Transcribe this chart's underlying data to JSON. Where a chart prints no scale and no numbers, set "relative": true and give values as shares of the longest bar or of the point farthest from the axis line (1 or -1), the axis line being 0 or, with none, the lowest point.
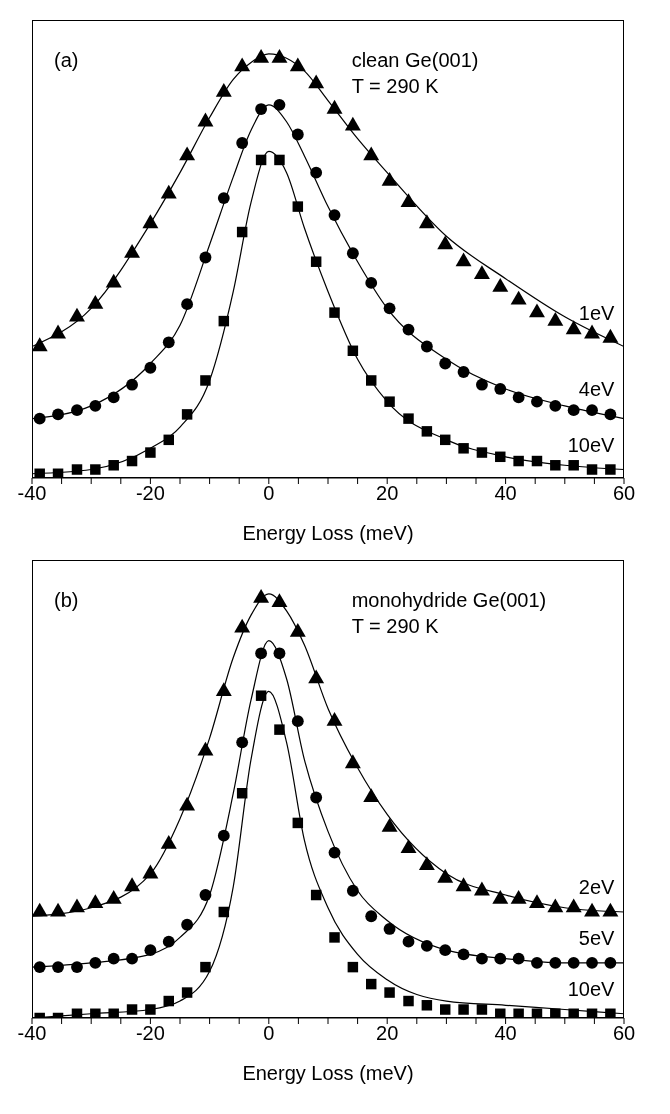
{
  "chart_data": [
    {
      "type": "scatter",
      "xlabel": "Energy Loss (meV)",
      "annotations": [
        "(a)",
        "clean Ge(001)",
        "T = 290 K"
      ],
      "relative": true,
      "xlim": [
        -40,
        60
      ],
      "xticks": [
        -40,
        {
          "value": -35,
          "label": null
        },
        {
          "value": -30,
          "label": null
        },
        {
          "value": -25,
          "label": null
        },
        -20,
        {
          "value": -15,
          "label": null
        },
        {
          "value": -10,
          "label": null
        },
        {
          "value": -5,
          "label": null
        },
        0,
        {
          "value": 5,
          "label": null
        },
        {
          "value": 10,
          "label": null
        },
        {
          "value": 15,
          "label": null
        },
        20,
        {
          "value": 25,
          "label": null
        },
        {
          "value": 30,
          "label": null
        },
        {
          "value": 35,
          "label": null
        },
        40,
        {
          "value": 45,
          "label": null
        },
        {
          "value": 50,
          "label": null
        },
        {
          "value": 55,
          "label": null
        },
        60
      ],
      "line_style": "solid",
      "x": [
        -38.7,
        -35.6,
        -32.4,
        -29.3,
        -26.2,
        -23.1,
        -20.0,
        -16.9,
        -13.8,
        -10.7,
        -7.6,
        -4.5,
        -1.3,
        1.8,
        4.9,
        8.0,
        11.1,
        14.2,
        17.3,
        20.4,
        23.6,
        26.7,
        29.8,
        32.9,
        36.0,
        39.1,
        42.2,
        45.3,
        48.4,
        51.5,
        54.6,
        57.7
      ],
      "series": [
        {
          "name": "1eV",
          "color": "#000000",
          "marker": "triangle",
          "values": [
            0.31,
            0.34,
            0.38,
            0.41,
            0.46,
            0.53,
            0.6,
            0.67,
            0.76,
            0.84,
            0.91,
            0.97,
            0.99,
            0.99,
            0.97,
            0.93,
            0.87,
            0.83,
            0.76,
            0.7,
            0.65,
            0.6,
            0.55,
            0.51,
            0.48,
            0.45,
            0.42,
            0.39,
            0.37,
            0.35,
            0.34,
            0.33
          ]
        },
        {
          "name": "4eV",
          "color": "#000000",
          "marker": "circle",
          "values": [
            0.14,
            0.15,
            0.16,
            0.17,
            0.19,
            0.22,
            0.26,
            0.32,
            0.41,
            0.52,
            0.66,
            0.79,
            0.87,
            0.88,
            0.81,
            0.72,
            0.62,
            0.53,
            0.46,
            0.4,
            0.35,
            0.31,
            0.27,
            0.25,
            0.22,
            0.21,
            0.19,
            0.18,
            0.17,
            0.16,
            0.16,
            0.15
          ]
        },
        {
          "name": "10eV",
          "color": "#000000",
          "marker": "square",
          "values": [
            0.01,
            0.01,
            0.02,
            0.02,
            0.03,
            0.04,
            0.06,
            0.09,
            0.15,
            0.23,
            0.37,
            0.58,
            0.75,
            0.75,
            0.64,
            0.51,
            0.39,
            0.3,
            0.23,
            0.18,
            0.14,
            0.11,
            0.09,
            0.07,
            0.06,
            0.05,
            0.04,
            0.04,
            0.03,
            0.03,
            0.02,
            0.02
          ]
        },
        {
          "type": "line",
          "color": "#000000",
          "x": [
            -40,
            -30,
            -20,
            -15,
            -10,
            -6,
            -3,
            0,
            3,
            6,
            10,
            15,
            20,
            30,
            40,
            50,
            60
          ],
          "values": [
            0.31,
            0.4,
            0.6,
            0.72,
            0.85,
            0.94,
            0.98,
            1.0,
            0.99,
            0.96,
            0.89,
            0.8,
            0.72,
            0.57,
            0.47,
            0.38,
            0.31
          ]
        },
        {
          "type": "line",
          "color": "#000000",
          "x": [
            -40,
            -30,
            -20,
            -15,
            -10,
            -6,
            -3,
            0,
            3,
            6,
            10,
            15,
            20,
            30,
            40,
            50,
            60
          ],
          "values": [
            0.14,
            0.17,
            0.27,
            0.36,
            0.55,
            0.71,
            0.82,
            0.88,
            0.84,
            0.76,
            0.64,
            0.51,
            0.4,
            0.28,
            0.21,
            0.17,
            0.14
          ]
        },
        {
          "type": "line",
          "color": "#000000",
          "x": [
            -40,
            -30,
            -20,
            -15,
            -10,
            -6,
            -3,
            0,
            3,
            6,
            10,
            15,
            20,
            30,
            40,
            50,
            60
          ],
          "values": [
            0.01,
            0.02,
            0.07,
            0.12,
            0.23,
            0.44,
            0.65,
            0.77,
            0.72,
            0.59,
            0.44,
            0.28,
            0.18,
            0.09,
            0.05,
            0.03,
            0.02
          ]
        }
      ]
    },
    {
      "type": "scatter",
      "xlabel": "Energy Loss (meV)",
      "annotations": [
        "(b)",
        "monohydride Ge(001)",
        "T = 290 K"
      ],
      "relative": true,
      "xlim": [
        -40,
        60
      ],
      "xticks": [
        -40,
        {
          "value": -35,
          "label": null
        },
        {
          "value": -30,
          "label": null
        },
        {
          "value": -25,
          "label": null
        },
        -20,
        {
          "value": -15,
          "label": null
        },
        {
          "value": -10,
          "label": null
        },
        {
          "value": -5,
          "label": null
        },
        0,
        {
          "value": 5,
          "label": null
        },
        {
          "value": 10,
          "label": null
        },
        {
          "value": 15,
          "label": null
        },
        20,
        {
          "value": 25,
          "label": null
        },
        {
          "value": 30,
          "label": null
        },
        {
          "value": 35,
          "label": null
        },
        40,
        {
          "value": 45,
          "label": null
        },
        {
          "value": 50,
          "label": null
        },
        {
          "value": 55,
          "label": null
        },
        60
      ],
      "line_style": "solid",
      "x": [
        -38.7,
        -35.6,
        -32.4,
        -29.3,
        -26.2,
        -23.1,
        -20.0,
        -16.9,
        -13.8,
        -10.7,
        -7.6,
        -4.5,
        -1.3,
        1.8,
        4.9,
        8.0,
        11.1,
        14.2,
        17.3,
        20.4,
        23.6,
        26.7,
        29.8,
        32.9,
        36.0,
        39.1,
        42.2,
        45.3,
        48.4,
        51.5,
        54.6,
        57.7
      ],
      "series": [
        {
          "name": "2eV",
          "color": "#000000",
          "marker": "triangle",
          "values": [
            0.25,
            0.25,
            0.26,
            0.27,
            0.28,
            0.31,
            0.34,
            0.41,
            0.5,
            0.63,
            0.77,
            0.92,
            0.99,
            0.98,
            0.91,
            0.8,
            0.7,
            0.6,
            0.52,
            0.45,
            0.4,
            0.36,
            0.33,
            0.31,
            0.3,
            0.28,
            0.28,
            0.27,
            0.26,
            0.26,
            0.25,
            0.25
          ]
        },
        {
          "name": "5eV",
          "color": "#000000",
          "marker": "circle",
          "values": [
            0.12,
            0.12,
            0.12,
            0.13,
            0.14,
            0.14,
            0.16,
            0.18,
            0.22,
            0.29,
            0.43,
            0.65,
            0.86,
            0.86,
            0.7,
            0.52,
            0.39,
            0.3,
            0.24,
            0.21,
            0.18,
            0.17,
            0.16,
            0.15,
            0.14,
            0.14,
            0.14,
            0.13,
            0.13,
            0.13,
            0.13,
            0.13
          ]
        },
        {
          "name": "10eV",
          "color": "#000000",
          "marker": "square",
          "values": [
            0.0,
            0.0,
            0.01,
            0.01,
            0.01,
            0.02,
            0.02,
            0.04,
            0.06,
            0.12,
            0.25,
            0.53,
            0.76,
            0.68,
            0.46,
            0.29,
            0.19,
            0.12,
            0.08,
            0.06,
            0.04,
            0.03,
            0.02,
            0.02,
            0.02,
            0.01,
            0.01,
            0.01,
            0.01,
            0.01,
            0.01,
            0.01
          ]
        },
        {
          "type": "line",
          "color": "#000000",
          "x": [
            -40,
            -30,
            -20,
            -15,
            -10,
            -6,
            -3,
            0,
            3,
            6,
            10,
            15,
            20,
            30,
            40,
            50,
            60
          ],
          "values": [
            0.24,
            0.26,
            0.34,
            0.47,
            0.66,
            0.85,
            0.95,
            1.0,
            0.96,
            0.88,
            0.73,
            0.59,
            0.48,
            0.34,
            0.29,
            0.26,
            0.25
          ]
        },
        {
          "type": "line",
          "color": "#000000",
          "x": [
            -40,
            -30,
            -20,
            -15,
            -10,
            -6,
            -3,
            0,
            3,
            6,
            10,
            15,
            20,
            30,
            40,
            50,
            60
          ],
          "values": [
            0.12,
            0.13,
            0.15,
            0.19,
            0.29,
            0.53,
            0.75,
            0.89,
            0.8,
            0.61,
            0.44,
            0.3,
            0.23,
            0.16,
            0.14,
            0.13,
            0.13
          ]
        },
        {
          "type": "line",
          "color": "#000000",
          "x": [
            -40,
            -30,
            -20,
            -15,
            -10,
            -6,
            -3,
            0,
            3,
            6,
            10,
            15,
            20,
            30,
            40,
            50,
            60
          ],
          "values": [
            0.0,
            0.01,
            0.02,
            0.04,
            0.11,
            0.31,
            0.61,
            0.77,
            0.65,
            0.42,
            0.26,
            0.15,
            0.09,
            0.04,
            0.03,
            0.02,
            0.01
          ]
        }
      ]
    }
  ]
}
